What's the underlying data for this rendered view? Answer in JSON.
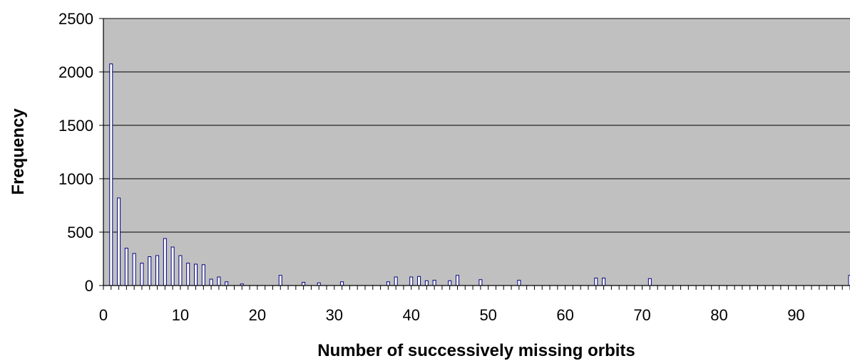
{
  "chart_data": {
    "type": "bar",
    "title": "",
    "xlabel": "Number of successively missing orbits",
    "ylabel": "Frequency",
    "xlim": [
      0,
      97
    ],
    "ylim": [
      0,
      2500
    ],
    "x_ticks": [
      0,
      10,
      20,
      30,
      40,
      50,
      60,
      70,
      80,
      90
    ],
    "y_ticks": [
      0,
      500,
      1000,
      1500,
      2000,
      2500
    ],
    "grid": "horizontal",
    "legend": "none",
    "colors": {
      "plot_background": "#c0c0c0",
      "bar_fill": "#ffffff",
      "bar_edge": "#000080",
      "gridline": "#000000"
    },
    "series": [
      {
        "x": [
          1,
          2,
          3,
          4,
          5,
          6,
          7,
          8,
          9,
          10,
          11,
          12,
          13,
          14,
          15,
          16,
          18,
          23,
          26,
          28,
          31,
          37,
          38,
          40,
          41,
          42,
          43,
          45,
          46,
          49,
          54,
          64,
          65,
          71,
          97
        ],
        "values": [
          2075,
          820,
          350,
          300,
          210,
          270,
          280,
          440,
          360,
          280,
          210,
          200,
          195,
          60,
          80,
          35,
          15,
          95,
          30,
          25,
          35,
          35,
          80,
          80,
          85,
          45,
          50,
          45,
          95,
          55,
          50,
          70,
          70,
          65,
          95
        ]
      }
    ]
  }
}
